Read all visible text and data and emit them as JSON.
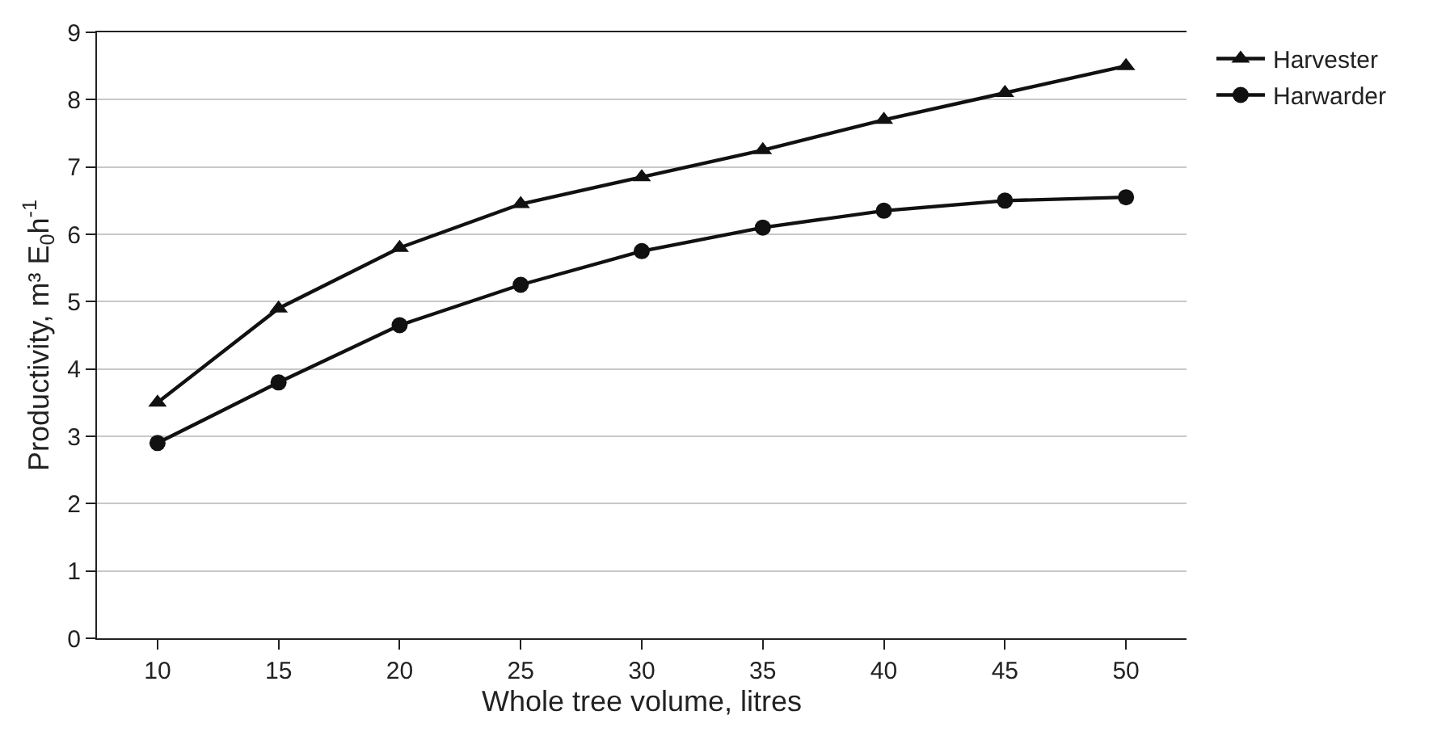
{
  "chart_data": {
    "type": "line",
    "xlabel": "Whole tree volume, litres",
    "ylabel": "Productivity, m³ E$_{0}$h$^{-1}$",
    "categories": [
      "10",
      "15",
      "20",
      "25",
      "30",
      "35",
      "40",
      "45",
      "50"
    ],
    "series": [
      {
        "name": "Harvester",
        "color": "#111111",
        "marker": "triangle",
        "values": [
          3.5,
          4.9,
          5.8,
          6.45,
          6.85,
          7.25,
          7.7,
          8.1,
          8.5
        ]
      },
      {
        "name": "Harwarder",
        "color": "#111111",
        "marker": "circle",
        "values": [
          2.9,
          3.8,
          4.65,
          5.25,
          5.75,
          6.1,
          6.35,
          6.5,
          6.55
        ]
      }
    ],
    "ylim": [
      0,
      9
    ],
    "yticks": [
      0,
      1,
      2,
      3,
      4,
      5,
      6,
      7,
      8,
      9
    ],
    "grid": "y",
    "legend": "top right",
    "line_style": "solid"
  }
}
